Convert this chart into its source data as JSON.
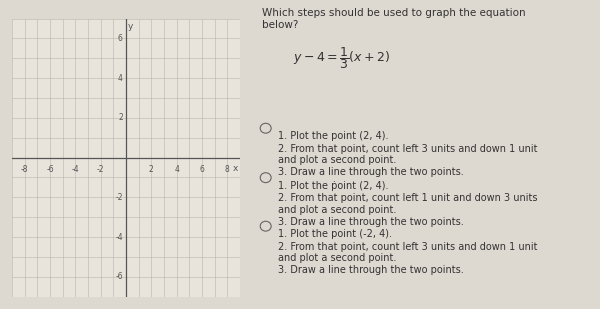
{
  "bg_color": "#ddd8d0",
  "graph_bg": "#e8e4dc",
  "grid_color": "#b8b4ac",
  "axis_color": "#555555",
  "x_range": [
    -9,
    9
  ],
  "y_range": [
    -7,
    7
  ],
  "x_ticks": [
    -8,
    -6,
    -4,
    -2,
    2,
    4,
    6,
    8
  ],
  "y_ticks": [
    -6,
    -4,
    -2,
    2,
    4,
    6
  ],
  "question_title_line1": "Which steps should be used to graph the equation",
  "question_title_line2": "below?",
  "equation_latex": "$y-4=\\dfrac{1}{3}(x+2)$",
  "options": [
    {
      "radio_y": 0.575,
      "lines": [
        [
          "1. Plot the point (2, 4).",
          0.575
        ],
        [
          "2. From that point, count left 3 units and down 1 unit",
          0.535
        ],
        [
          "and plot a second point.",
          0.497
        ],
        [
          "3. Draw a line through the two points.",
          0.459
        ]
      ]
    },
    {
      "radio_y": 0.415,
      "lines": [
        [
          "1. Plot the ṗoint (2, 4).",
          0.415
        ],
        [
          "2. From that point, count left 1 unit and down 3 units",
          0.375
        ],
        [
          "and plot a second point.",
          0.337
        ],
        [
          "3. Draw a line through the two points.",
          0.299
        ]
      ]
    },
    {
      "radio_y": 0.258,
      "lines": [
        [
          "1. Plot the point (-2, 4).",
          0.258
        ],
        [
          "2. From that point, count left 3 units and down 1 unit",
          0.218
        ],
        [
          "and plot a second point.",
          0.18
        ],
        [
          "3. Draw a line through the two points.",
          0.142
        ]
      ]
    }
  ],
  "radio_color": "#666666",
  "text_color": "#333333",
  "title_fontsize": 7.5,
  "eq_fontsize": 9.0,
  "option_fontsize": 7.0,
  "radio_size": 0.016
}
